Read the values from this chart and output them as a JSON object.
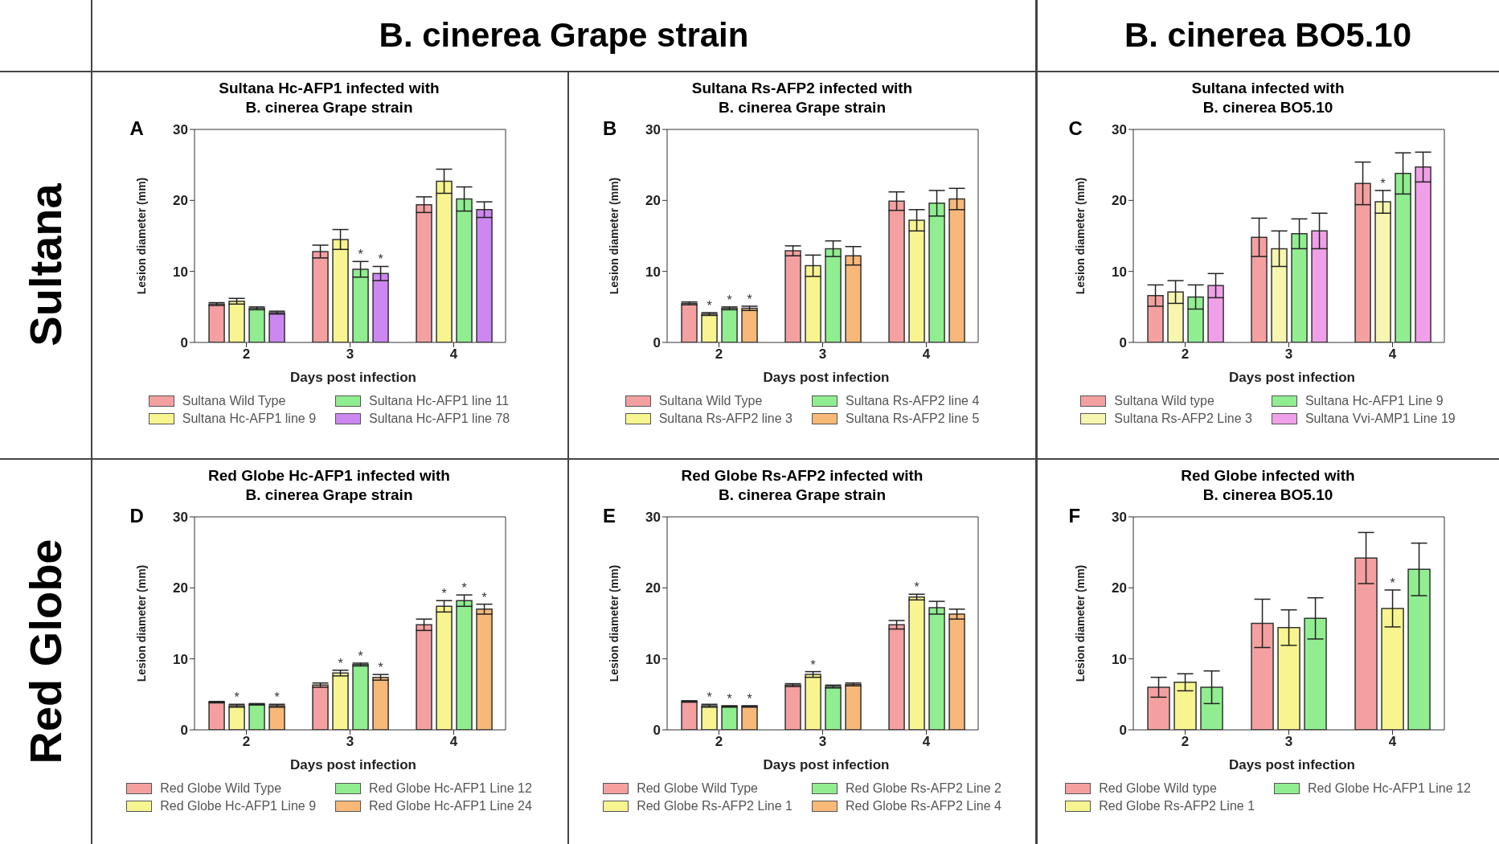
{
  "chart_data": [
    {
      "type": "other",
      "annotations": [
        "B. cinerea Grape strain",
        "B. cinerea BO5.10",
        "Sultana",
        "Red Globe"
      ]
    },
    {
      "type": "bar",
      "title": "Sultana Hc-AFP1 infected with\nB. cinerea Grape strain",
      "annotations": [
        "A"
      ],
      "xlabel": "Days post infection",
      "ylabel": "Lesion diameter (mm)",
      "categories": [
        "2",
        "3",
        "4"
      ],
      "ylim": [
        0,
        30
      ],
      "yticks": [
        0,
        10,
        20,
        30
      ],
      "legend": "bottom",
      "series": [
        {
          "name": "Sultana Wild Type",
          "color": "#f4a0a0",
          "values": [
            5.4,
            12.8,
            19.4
          ],
          "errors": [
            0.2,
            0.9,
            1.1
          ]
        },
        {
          "name": "Sultana Hc-AFP1 line 9",
          "color": "#f8f490",
          "values": [
            5.8,
            14.5,
            22.7
          ],
          "errors": [
            0.4,
            1.4,
            1.7
          ]
        },
        {
          "name": "Sultana Hc-AFP1 line 11",
          "color": "#90ee90",
          "values": [
            4.8,
            10.3,
            20.2
          ],
          "errors": [
            0.2,
            1.1,
            1.7
          ],
          "value_labels": [
            null,
            "*",
            null
          ]
        },
        {
          "name": "Sultana Hc-AFP1 line 78",
          "color": "#cc88f0",
          "values": [
            4.2,
            9.7,
            18.7
          ],
          "errors": [
            0.2,
            1.0,
            1.1
          ],
          "value_labels": [
            null,
            "*",
            null
          ]
        }
      ]
    },
    {
      "type": "bar",
      "title": "Sultana Rs-AFP2 infected with\nB. cinerea Grape strain",
      "annotations": [
        "B"
      ],
      "xlabel": "Days post infection",
      "ylabel": "Lesion diameter (mm)",
      "categories": [
        "2",
        "3",
        "4"
      ],
      "ylim": [
        0,
        30
      ],
      "yticks": [
        0,
        10,
        20,
        30
      ],
      "legend": "bottom",
      "series": [
        {
          "name": "Sultana Wild Type",
          "color": "#f4a0a0",
          "values": [
            5.5,
            12.9,
            19.9
          ],
          "errors": [
            0.2,
            0.7,
            1.3
          ]
        },
        {
          "name": "Sultana Rs-AFP2 line 3",
          "color": "#f8f490",
          "values": [
            4.0,
            10.8,
            17.2
          ],
          "errors": [
            0.2,
            1.5,
            1.5
          ],
          "value_labels": [
            "*",
            null,
            null
          ]
        },
        {
          "name": "Sultana Rs-AFP2 line 4",
          "color": "#90ee90",
          "values": [
            4.8,
            13.2,
            19.6
          ],
          "errors": [
            0.2,
            1.1,
            1.8
          ],
          "value_labels": [
            "*",
            null,
            null
          ]
        },
        {
          "name": "Sultana Rs-AFP2 line 5",
          "color": "#f8b878",
          "values": [
            4.8,
            12.2,
            20.2
          ],
          "errors": [
            0.3,
            1.3,
            1.5
          ],
          "value_labels": [
            "*",
            null,
            null
          ]
        }
      ]
    },
    {
      "type": "bar",
      "title": "Sultana infected with\nB. cinerea BO5.10",
      "annotations": [
        "C"
      ],
      "xlabel": "Days post infection",
      "ylabel": "Lesion diameter (mm)",
      "categories": [
        "2",
        "3",
        "4"
      ],
      "ylim": [
        0,
        30
      ],
      "yticks": [
        0,
        10,
        20,
        30
      ],
      "legend": "bottom",
      "series": [
        {
          "name": "Sultana Wild type",
          "color": "#f4a0a0",
          "values": [
            6.6,
            14.8,
            22.4
          ],
          "errors": [
            1.5,
            2.7,
            3.0
          ]
        },
        {
          "name": "Sultana Rs-AFP2 Line 3",
          "color": "#f6f6b0",
          "values": [
            7.1,
            13.2,
            19.8
          ],
          "errors": [
            1.6,
            2.5,
            1.6
          ],
          "value_labels": [
            null,
            null,
            "*"
          ]
        },
        {
          "name": "Sultana Hc-AFP1 Line 9",
          "color": "#90ee90",
          "values": [
            6.4,
            15.3,
            23.8
          ],
          "errors": [
            1.7,
            2.1,
            2.9
          ]
        },
        {
          "name": "Sultana Vvi-AMP1 Line 19",
          "color": "#f0a0e8",
          "values": [
            8.0,
            15.7,
            24.7
          ],
          "errors": [
            1.7,
            2.5,
            2.1
          ]
        }
      ]
    },
    {
      "type": "bar",
      "title": "Red Globe Hc-AFP1 infected with\nB. cinerea Grape strain",
      "annotations": [
        "D"
      ],
      "xlabel": "Days post infection",
      "ylabel": "Lesion diameter (mm)",
      "categories": [
        "2",
        "3",
        "4"
      ],
      "ylim": [
        0,
        30
      ],
      "yticks": [
        0,
        10,
        20,
        30
      ],
      "legend": "bottom",
      "series": [
        {
          "name": "Red Globe Wild Type",
          "color": "#f4a0a0",
          "values": [
            3.9,
            6.3,
            14.8
          ],
          "errors": [
            0.1,
            0.3,
            0.8
          ]
        },
        {
          "name": "Red Globe Hc-AFP1 Line 9",
          "color": "#f8f490",
          "values": [
            3.4,
            8.0,
            17.4
          ],
          "errors": [
            0.2,
            0.4,
            0.8
          ],
          "value_labels": [
            "*",
            "*",
            "*"
          ]
        },
        {
          "name": "Red Globe Hc-AFP1 Line 12",
          "color": "#90ee90",
          "values": [
            3.6,
            9.2,
            18.2
          ],
          "errors": [
            0.1,
            0.2,
            0.8
          ],
          "value_labels": [
            null,
            "*",
            "*"
          ]
        },
        {
          "name": "Red Globe Hc-AFP1 Line 24",
          "color": "#f8b878",
          "values": [
            3.4,
            7.4,
            17.0
          ],
          "errors": [
            0.2,
            0.4,
            0.7
          ],
          "value_labels": [
            "*",
            "*",
            "*"
          ]
        }
      ]
    },
    {
      "type": "bar",
      "title": "Red Globe Rs-AFP2 infected with\nB. cinerea Grape strain",
      "annotations": [
        "E"
      ],
      "xlabel": "Days post infection",
      "ylabel": "Lesion diameter (mm)",
      "categories": [
        "2",
        "3",
        "4"
      ],
      "ylim": [
        0,
        30
      ],
      "yticks": [
        0,
        10,
        20,
        30
      ],
      "legend": "bottom",
      "series": [
        {
          "name": "Red Globe Wild Type",
          "color": "#f4a0a0",
          "values": [
            4.0,
            6.3,
            14.8
          ],
          "errors": [
            0.1,
            0.2,
            0.6
          ]
        },
        {
          "name": "Red Globe Rs-AFP2 Line 1",
          "color": "#f8f490",
          "values": [
            3.4,
            7.8,
            18.7
          ],
          "errors": [
            0.2,
            0.4,
            0.4
          ],
          "value_labels": [
            "*",
            "*",
            "*"
          ]
        },
        {
          "name": "Red Globe Rs-AFP2 Line 2",
          "color": "#90ee90",
          "values": [
            3.3,
            6.1,
            17.2
          ],
          "errors": [
            0.1,
            0.2,
            0.9
          ],
          "value_labels": [
            "*",
            null,
            null
          ]
        },
        {
          "name": "Red Globe Rs-AFP2 Line 4",
          "color": "#f8b878",
          "values": [
            3.3,
            6.4,
            16.3
          ],
          "errors": [
            0.1,
            0.2,
            0.7
          ],
          "value_labels": [
            "*",
            null,
            null
          ]
        }
      ]
    },
    {
      "type": "bar",
      "title": "Red Globe infected with\nB. cinerea BO5.10",
      "annotations": [
        "F"
      ],
      "xlabel": "Days post infection",
      "ylabel": "Lesion diameter (mm)",
      "categories": [
        "2",
        "3",
        "4"
      ],
      "ylim": [
        0,
        30
      ],
      "yticks": [
        0,
        10,
        20,
        30
      ],
      "legend": "bottom",
      "series": [
        {
          "name": "Red Globe Wild type",
          "color": "#f4a0a0",
          "values": [
            6.0,
            15.0,
            24.2
          ],
          "errors": [
            1.4,
            3.4,
            3.6
          ]
        },
        {
          "name": "Red Globe Rs-AFP2 Line 1",
          "color": "#f8f490",
          "values": [
            6.7,
            14.4,
            17.1
          ],
          "errors": [
            1.2,
            2.5,
            2.6
          ],
          "value_labels": [
            null,
            null,
            "*"
          ]
        },
        {
          "name": "Red Globe Hc-AFP1 Line 12",
          "color": "#90ee90",
          "values": [
            6.0,
            15.7,
            22.6
          ],
          "errors": [
            2.3,
            2.9,
            3.7
          ]
        }
      ]
    }
  ]
}
